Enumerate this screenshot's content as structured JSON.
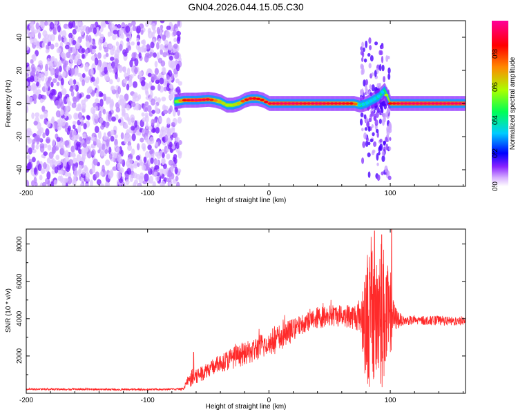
{
  "title": "GN04.2026.044.15.05.C30",
  "chart_data": [
    {
      "type": "heatmap",
      "name": "spectrogram",
      "xlabel": "Height of straight line (km)",
      "ylabel": "Frequency (Hz)",
      "xlim": [
        -200,
        162
      ],
      "ylim": [
        -50,
        50
      ],
      "xticks": [
        -200,
        -100,
        0,
        100
      ],
      "yticks": [
        -40,
        -20,
        0,
        20,
        40
      ],
      "colorbar": {
        "label": "Normalized spectral amplitude",
        "range": [
          0,
          1
        ],
        "ticks": [
          0,
          0.2,
          0.4,
          0.6,
          0.8
        ],
        "tick_labels": [
          "0.0",
          "0.2",
          "0.4",
          "0.6",
          "0.8"
        ],
        "colors": [
          "#ffffff",
          "#cc88ff",
          "#6600ff",
          "#0000ff",
          "#00ccff",
          "#00ff66",
          "#ccff00",
          "#ff8800",
          "#ff0000",
          "#ff00aa"
        ]
      },
      "noise_region": {
        "x_range": [
          -200,
          -73
        ],
        "freq_range": [
          -50,
          50
        ],
        "amplitude": 0.1
      },
      "ridge": {
        "x": [
          -78,
          -70,
          -60,
          -50,
          -45,
          -40,
          -35,
          -30,
          -25,
          -20,
          -15,
          -10,
          -5,
          0,
          10,
          20,
          30,
          40,
          50,
          60,
          70,
          75,
          80,
          85,
          90,
          95,
          100,
          110,
          120,
          130,
          140,
          150,
          162
        ],
        "freq": [
          1,
          2,
          2,
          2.5,
          2,
          1,
          -1,
          -1,
          0,
          2,
          3,
          3,
          2,
          0,
          0,
          0,
          0,
          0,
          0,
          0,
          0,
          -1,
          0,
          2,
          4,
          8,
          0,
          0,
          0,
          0,
          0,
          0,
          0
        ],
        "amplitude": [
          0.4,
          0.8,
          0.9,
          0.85,
          0.7,
          0.6,
          0.55,
          0.55,
          0.6,
          0.8,
          0.85,
          0.8,
          0.8,
          0.85,
          0.9,
          0.9,
          0.85,
          0.9,
          0.85,
          0.85,
          0.8,
          0.4,
          0.3,
          0.25,
          0.35,
          0.4,
          0.8,
          0.9,
          0.9,
          0.9,
          0.9,
          0.9,
          0.9
        ]
      },
      "scatter_region": {
        "x_range": [
          76,
          100
        ],
        "freq_range": [
          -45,
          38
        ],
        "amplitude": 0.2
      }
    },
    {
      "type": "line",
      "name": "snr",
      "xlabel": "Height of straight line (km)",
      "ylabel": "SNR (10 * v/v)",
      "xlim": [
        -200,
        162
      ],
      "ylim": [
        0,
        8800
      ],
      "xticks": [
        -200,
        -100,
        0,
        100
      ],
      "yticks": [
        2000,
        4000,
        6000,
        8000
      ],
      "color": "#ff2a2a",
      "series": [
        {
          "name": "SNR",
          "x": [
            -200,
            -150,
            -100,
            -75,
            -70,
            -68,
            -64,
            -60,
            -50,
            -40,
            -30,
            -20,
            -10,
            0,
            10,
            20,
            30,
            40,
            50,
            60,
            70,
            75,
            80,
            84,
            88,
            92,
            96,
            100,
            104,
            110,
            120,
            130,
            140,
            150,
            162
          ],
          "mean": [
            220,
            210,
            200,
            220,
            250,
            600,
            800,
            900,
            1300,
            1600,
            1900,
            2100,
            2400,
            2700,
            3000,
            3400,
            3800,
            4050,
            4150,
            4200,
            4100,
            4200,
            4000,
            4200,
            4300,
            4300,
            4200,
            4000,
            4000,
            3900,
            3900,
            3900,
            3900,
            3850,
            3900
          ],
          "spread": [
            50,
            50,
            50,
            50,
            80,
            200,
            500,
            500,
            400,
            500,
            600,
            600,
            700,
            700,
            800,
            600,
            500,
            600,
            600,
            600,
            700,
            900,
            3500,
            4200,
            4400,
            4300,
            3500,
            2000,
            700,
            250,
            250,
            250,
            250,
            250,
            250
          ],
          "spikes": [
            {
              "x": -62,
              "y": 2200
            },
            {
              "x": 87,
              "y": 8700
            },
            {
              "x": 101,
              "y": 8800
            },
            {
              "x": 93,
              "y": 8500
            }
          ]
        }
      ]
    }
  ]
}
